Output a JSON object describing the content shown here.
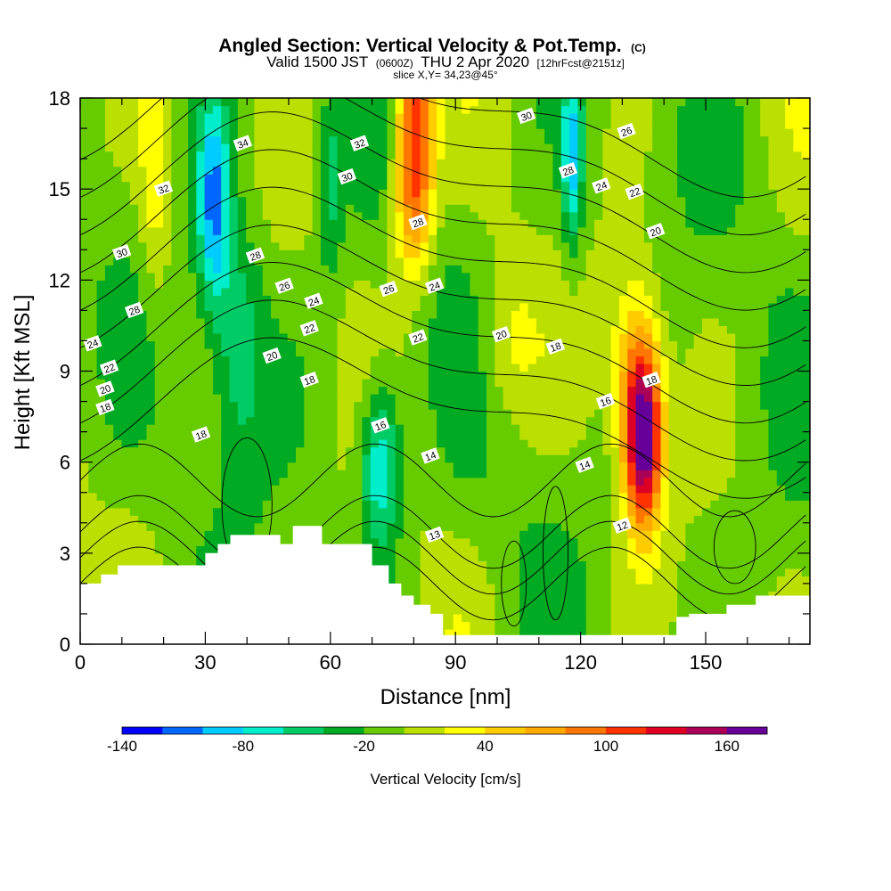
{
  "header": {
    "title_main": "Angled Section: Vertical Velocity & Pot.Temp.",
    "title_suffix": "(C)",
    "subtitle_main": "Valid 1500 JST",
    "subtitle_utc": "(0600Z)",
    "subtitle_date": "THU 2 Apr 2020",
    "subtitle_fcst": "[12hrFcst@2151z]",
    "slice": "slice X,Y= 34,23@45°"
  },
  "chart_data": {
    "type": "heatmap",
    "xlabel": "Distance [nm]",
    "ylabel": "Height [Kft MSL]",
    "xlim": [
      0,
      175
    ],
    "ylim": [
      0,
      18
    ],
    "x_ticks": [
      0,
      30,
      60,
      90,
      120,
      150
    ],
    "y_ticks": [
      0,
      3,
      6,
      9,
      12,
      15,
      18
    ],
    "x_tick_labels": [
      "0",
      "30",
      "60",
      "90",
      "120",
      "150"
    ],
    "y_tick_labels": [
      "0",
      "3",
      "6",
      "9",
      "12",
      "15",
      "18"
    ],
    "colorbar": {
      "title": "Vertical Velocity [cm/s]",
      "range": [
        -140,
        180
      ],
      "step": 20,
      "colors": [
        "#0000ff",
        "#0066ff",
        "#00ccff",
        "#00eecc",
        "#00cc66",
        "#00aa22",
        "#66cc00",
        "#bbe000",
        "#ffff00",
        "#ffcc00",
        "#ffaa00",
        "#ff7700",
        "#ff3300",
        "#dd0022",
        "#aa0055",
        "#660099"
      ],
      "tick_values": [
        -140,
        -80,
        -20,
        40,
        100,
        160
      ],
      "tick_labels": [
        "-140",
        "-80",
        "-20",
        "40",
        "100",
        "160"
      ]
    },
    "terrain": [
      [
        0,
        2.0
      ],
      [
        5,
        2.0
      ],
      [
        5,
        2.3
      ],
      [
        9,
        2.3
      ],
      [
        9,
        2.6
      ],
      [
        30,
        2.6
      ],
      [
        30,
        3.0
      ],
      [
        33,
        3.0
      ],
      [
        33,
        3.3
      ],
      [
        36,
        3.3
      ],
      [
        36,
        3.6
      ],
      [
        48,
        3.6
      ],
      [
        48,
        3.3
      ],
      [
        51,
        3.3
      ],
      [
        51,
        3.9
      ],
      [
        58,
        3.9
      ],
      [
        58,
        3.3
      ],
      [
        70,
        3.3
      ],
      [
        70,
        2.6
      ],
      [
        74,
        2.6
      ],
      [
        74,
        2.0
      ],
      [
        77,
        2.0
      ],
      [
        77,
        1.6
      ],
      [
        80,
        1.6
      ],
      [
        80,
        1.3
      ],
      [
        84,
        1.3
      ],
      [
        84,
        1.0
      ],
      [
        87,
        1.0
      ],
      [
        87,
        0.3
      ],
      [
        143,
        0.3
      ],
      [
        143,
        0.9
      ],
      [
        146,
        0.9
      ],
      [
        146,
        1.0
      ],
      [
        155,
        1.0
      ],
      [
        155,
        1.3
      ],
      [
        162,
        1.3
      ],
      [
        162,
        1.6
      ],
      [
        175,
        1.6
      ]
    ],
    "wmax": [
      {
        "x": 80,
        "y": 17.2,
        "sx": 4.5,
        "sy": 3.5,
        "a": 120
      },
      {
        "x": 80,
        "y": 14.2,
        "sx": 5,
        "sy": 2.5,
        "a": 50
      },
      {
        "x": 135,
        "y": 6.7,
        "sx": 4.5,
        "sy": 2.8,
        "a": 185
      },
      {
        "x": 133,
        "y": 9.5,
        "sx": 6,
        "sy": 3,
        "a": 60
      },
      {
        "x": 18,
        "y": 15,
        "sx": 4,
        "sy": 4,
        "a": 40
      },
      {
        "x": 102,
        "y": 10,
        "sx": 7,
        "sy": 3,
        "a": 30
      }
    ],
    "wmin": [
      {
        "x": 32,
        "y": 14.5,
        "sx": 4,
        "sy": 3.5,
        "a": -95
      },
      {
        "x": 38,
        "y": 10,
        "sx": 6,
        "sy": 4,
        "a": -50
      },
      {
        "x": 72,
        "y": 6,
        "sx": 5,
        "sy": 2.8,
        "a": -85
      },
      {
        "x": 118,
        "y": 16,
        "sx": 2.5,
        "sy": 3,
        "a": -80
      },
      {
        "x": 60,
        "y": 15,
        "sx": 3,
        "sy": 3,
        "a": -40
      }
    ],
    "theta_levels": [
      12,
      13,
      14,
      16,
      18,
      20,
      22,
      24,
      26,
      28,
      30,
      32,
      34
    ],
    "contour_labels": [
      {
        "value": "34",
        "x": 39,
        "y": 16.5
      },
      {
        "value": "32",
        "x": 20,
        "y": 15.0
      },
      {
        "value": "30",
        "x": 10,
        "y": 12.9
      },
      {
        "value": "28",
        "x": 13,
        "y": 11.0
      },
      {
        "value": "24",
        "x": 3,
        "y": 9.9
      },
      {
        "value": "22",
        "x": 7,
        "y": 9.1
      },
      {
        "value": "20",
        "x": 6,
        "y": 8.4
      },
      {
        "value": "18",
        "x": 6,
        "y": 7.8
      },
      {
        "value": "18",
        "x": 29,
        "y": 6.9
      },
      {
        "value": "28",
        "x": 42,
        "y": 12.8
      },
      {
        "value": "26",
        "x": 49,
        "y": 11.8
      },
      {
        "value": "24",
        "x": 56,
        "y": 11.3
      },
      {
        "value": "22",
        "x": 55,
        "y": 10.4
      },
      {
        "value": "20",
        "x": 46,
        "y": 9.5
      },
      {
        "value": "18",
        "x": 55,
        "y": 8.7
      },
      {
        "value": "32",
        "x": 67,
        "y": 16.5
      },
      {
        "value": "30",
        "x": 64,
        "y": 15.4
      },
      {
        "value": "26",
        "x": 74,
        "y": 11.7
      },
      {
        "value": "28",
        "x": 81,
        "y": 13.9
      },
      {
        "value": "24",
        "x": 85,
        "y": 11.8
      },
      {
        "value": "22",
        "x": 81,
        "y": 10.1
      },
      {
        "value": "16",
        "x": 72,
        "y": 7.2
      },
      {
        "value": "14",
        "x": 84,
        "y": 6.2
      },
      {
        "value": "13",
        "x": 85,
        "y": 3.6
      },
      {
        "value": "30",
        "x": 107,
        "y": 17.4
      },
      {
        "value": "28",
        "x": 117,
        "y": 15.6
      },
      {
        "value": "24",
        "x": 125,
        "y": 15.1
      },
      {
        "value": "26",
        "x": 131,
        "y": 16.9
      },
      {
        "value": "22",
        "x": 133,
        "y": 14.9
      },
      {
        "value": "20",
        "x": 138,
        "y": 13.6
      },
      {
        "value": "20",
        "x": 101,
        "y": 10.2
      },
      {
        "value": "18",
        "x": 114,
        "y": 9.8
      },
      {
        "value": "16",
        "x": 126,
        "y": 8.0
      },
      {
        "value": "14",
        "x": 121,
        "y": 5.9
      },
      {
        "value": "12",
        "x": 130,
        "y": 3.9
      },
      {
        "value": "18",
        "x": 137,
        "y": 8.7
      }
    ]
  }
}
